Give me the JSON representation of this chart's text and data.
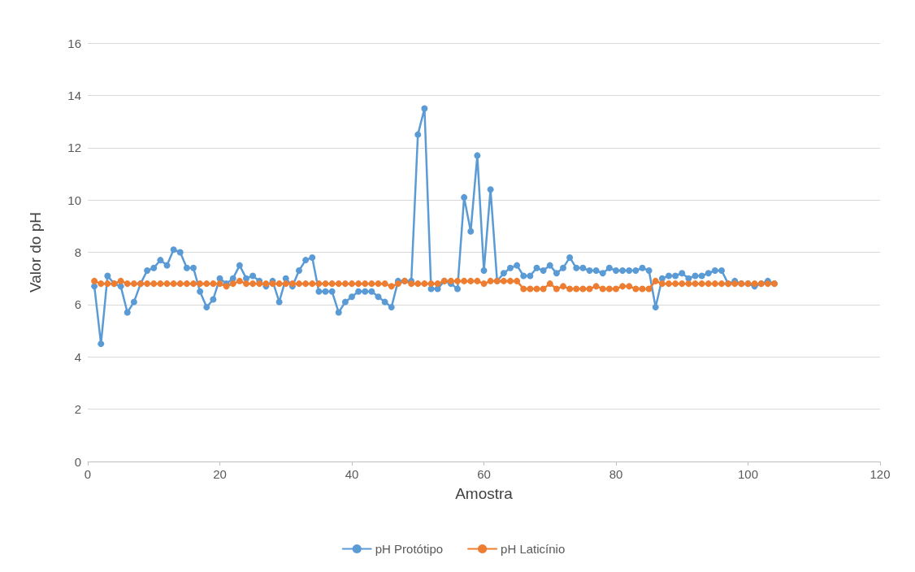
{
  "chart_data": {
    "type": "line",
    "xlabel": "Amostra",
    "ylabel": "Valor do pH",
    "x": [
      1,
      2,
      3,
      4,
      5,
      6,
      7,
      8,
      9,
      10,
      11,
      12,
      13,
      14,
      15,
      16,
      17,
      18,
      19,
      20,
      21,
      22,
      23,
      24,
      25,
      26,
      27,
      28,
      29,
      30,
      31,
      32,
      33,
      34,
      35,
      36,
      37,
      38,
      39,
      40,
      41,
      42,
      43,
      44,
      45,
      46,
      47,
      48,
      49,
      50,
      51,
      52,
      53,
      54,
      55,
      56,
      57,
      58,
      59,
      60,
      61,
      62,
      63,
      64,
      65,
      66,
      67,
      68,
      69,
      70,
      71,
      72,
      73,
      74,
      75,
      76,
      77,
      78,
      79,
      80,
      81,
      82,
      83,
      84,
      85,
      86,
      87,
      88,
      89,
      90,
      91,
      92,
      93,
      94,
      95,
      96,
      97,
      98,
      99,
      100,
      101,
      102,
      103,
      104
    ],
    "series": [
      {
        "name": "pH Protótipo",
        "color": "#5b9bd5",
        "values": [
          6.7,
          4.5,
          7.1,
          6.8,
          6.7,
          5.7,
          6.1,
          6.8,
          7.3,
          7.4,
          7.7,
          7.5,
          8.1,
          8.0,
          7.4,
          7.4,
          6.5,
          5.9,
          6.2,
          7.0,
          6.8,
          7.0,
          7.5,
          7.0,
          7.1,
          6.9,
          6.7,
          6.9,
          6.1,
          7.0,
          6.7,
          7.3,
          7.7,
          7.8,
          6.5,
          6.5,
          6.5,
          5.7,
          6.1,
          6.3,
          6.5,
          6.5,
          6.5,
          6.3,
          6.1,
          5.9,
          6.9,
          6.9,
          6.9,
          12.5,
          13.5,
          6.6,
          6.6,
          6.9,
          6.8,
          6.6,
          10.1,
          8.8,
          11.7,
          7.3,
          10.4,
          6.9,
          7.2,
          7.4,
          7.5,
          7.1,
          7.1,
          7.4,
          7.3,
          7.5,
          7.2,
          7.4,
          7.8,
          7.4,
          7.4,
          7.3,
          7.3,
          7.2,
          7.4,
          7.3,
          7.3,
          7.3,
          7.3,
          7.4,
          7.3,
          5.9,
          7.0,
          7.1,
          7.1,
          7.2,
          7.0,
          7.1,
          7.1,
          7.2,
          7.3,
          7.3,
          6.8,
          6.9,
          6.8,
          6.8,
          6.7,
          6.8,
          6.9,
          6.8
        ]
      },
      {
        "name": "pH Laticínio",
        "color": "#ed7d31",
        "values": [
          6.9,
          6.8,
          6.8,
          6.8,
          6.9,
          6.8,
          6.8,
          6.8,
          6.8,
          6.8,
          6.8,
          6.8,
          6.8,
          6.8,
          6.8,
          6.8,
          6.8,
          6.8,
          6.8,
          6.8,
          6.7,
          6.8,
          6.9,
          6.8,
          6.8,
          6.8,
          6.8,
          6.8,
          6.8,
          6.8,
          6.8,
          6.8,
          6.8,
          6.8,
          6.8,
          6.8,
          6.8,
          6.8,
          6.8,
          6.8,
          6.8,
          6.8,
          6.8,
          6.8,
          6.8,
          6.7,
          6.8,
          6.9,
          6.8,
          6.8,
          6.8,
          6.8,
          6.8,
          6.9,
          6.9,
          6.9,
          6.9,
          6.9,
          6.9,
          6.8,
          6.9,
          6.9,
          6.9,
          6.9,
          6.9,
          6.6,
          6.6,
          6.6,
          6.6,
          6.8,
          6.6,
          6.7,
          6.6,
          6.6,
          6.6,
          6.6,
          6.7,
          6.6,
          6.6,
          6.6,
          6.7,
          6.7,
          6.6,
          6.6,
          6.6,
          6.9,
          6.8,
          6.8,
          6.8,
          6.8,
          6.8,
          6.8,
          6.8,
          6.8,
          6.8,
          6.8,
          6.8,
          6.8,
          6.8,
          6.8,
          6.8,
          6.8,
          6.8,
          6.8
        ]
      }
    ],
    "xlim": [
      0,
      120
    ],
    "xticks": [
      0,
      20,
      40,
      60,
      80,
      100,
      120
    ],
    "ylim": [
      0,
      16
    ],
    "yticks": [
      0,
      2,
      4,
      6,
      8,
      10,
      12,
      14,
      16
    ],
    "grid": "y",
    "legend": "bottom",
    "marker": "circle",
    "line_style": "solid"
  }
}
